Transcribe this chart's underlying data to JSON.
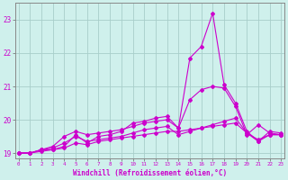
{
  "xlabel": "Windchill (Refroidissement éolien,°C)",
  "background_color": "#cff0ec",
  "grid_color": "#a8ceca",
  "line_color": "#cc00cc",
  "hours": [
    0,
    1,
    2,
    3,
    4,
    5,
    6,
    7,
    8,
    9,
    10,
    11,
    12,
    13,
    14,
    15,
    16,
    17,
    18,
    19,
    20,
    21,
    22,
    23
  ],
  "line1": [
    19.0,
    19.0,
    19.05,
    19.1,
    19.15,
    19.3,
    19.25,
    19.35,
    19.4,
    19.45,
    19.5,
    19.55,
    19.6,
    19.65,
    19.65,
    19.7,
    19.75,
    19.8,
    19.85,
    19.9,
    19.6,
    19.4,
    19.55,
    19.55
  ],
  "line2": [
    19.0,
    19.0,
    19.1,
    19.15,
    19.3,
    19.5,
    19.35,
    19.4,
    19.45,
    19.5,
    19.6,
    19.7,
    19.75,
    19.8,
    19.55,
    19.65,
    19.75,
    19.85,
    19.95,
    20.05,
    19.6,
    19.35,
    19.55,
    19.55
  ],
  "line3": [
    19.0,
    19.0,
    19.1,
    19.2,
    19.5,
    19.65,
    19.55,
    19.6,
    19.65,
    19.7,
    19.8,
    19.9,
    19.95,
    20.0,
    19.75,
    20.6,
    20.9,
    21.0,
    20.95,
    20.4,
    19.55,
    19.85,
    19.6,
    19.55
  ],
  "line4": [
    19.0,
    19.0,
    19.1,
    19.1,
    19.2,
    19.55,
    19.3,
    19.5,
    19.55,
    19.65,
    19.9,
    19.95,
    20.05,
    20.1,
    19.75,
    21.85,
    22.2,
    23.2,
    21.05,
    20.5,
    19.65,
    19.35,
    19.65,
    19.6
  ],
  "ylim": [
    18.85,
    23.5
  ],
  "yticks": [
    19,
    20,
    21,
    22,
    23
  ],
  "xticks": [
    0,
    1,
    2,
    3,
    4,
    5,
    6,
    7,
    8,
    9,
    10,
    11,
    12,
    13,
    14,
    15,
    16,
    17,
    18,
    19,
    20,
    21,
    22,
    23
  ],
  "figwidth": 3.2,
  "figheight": 2.0,
  "dpi": 100
}
